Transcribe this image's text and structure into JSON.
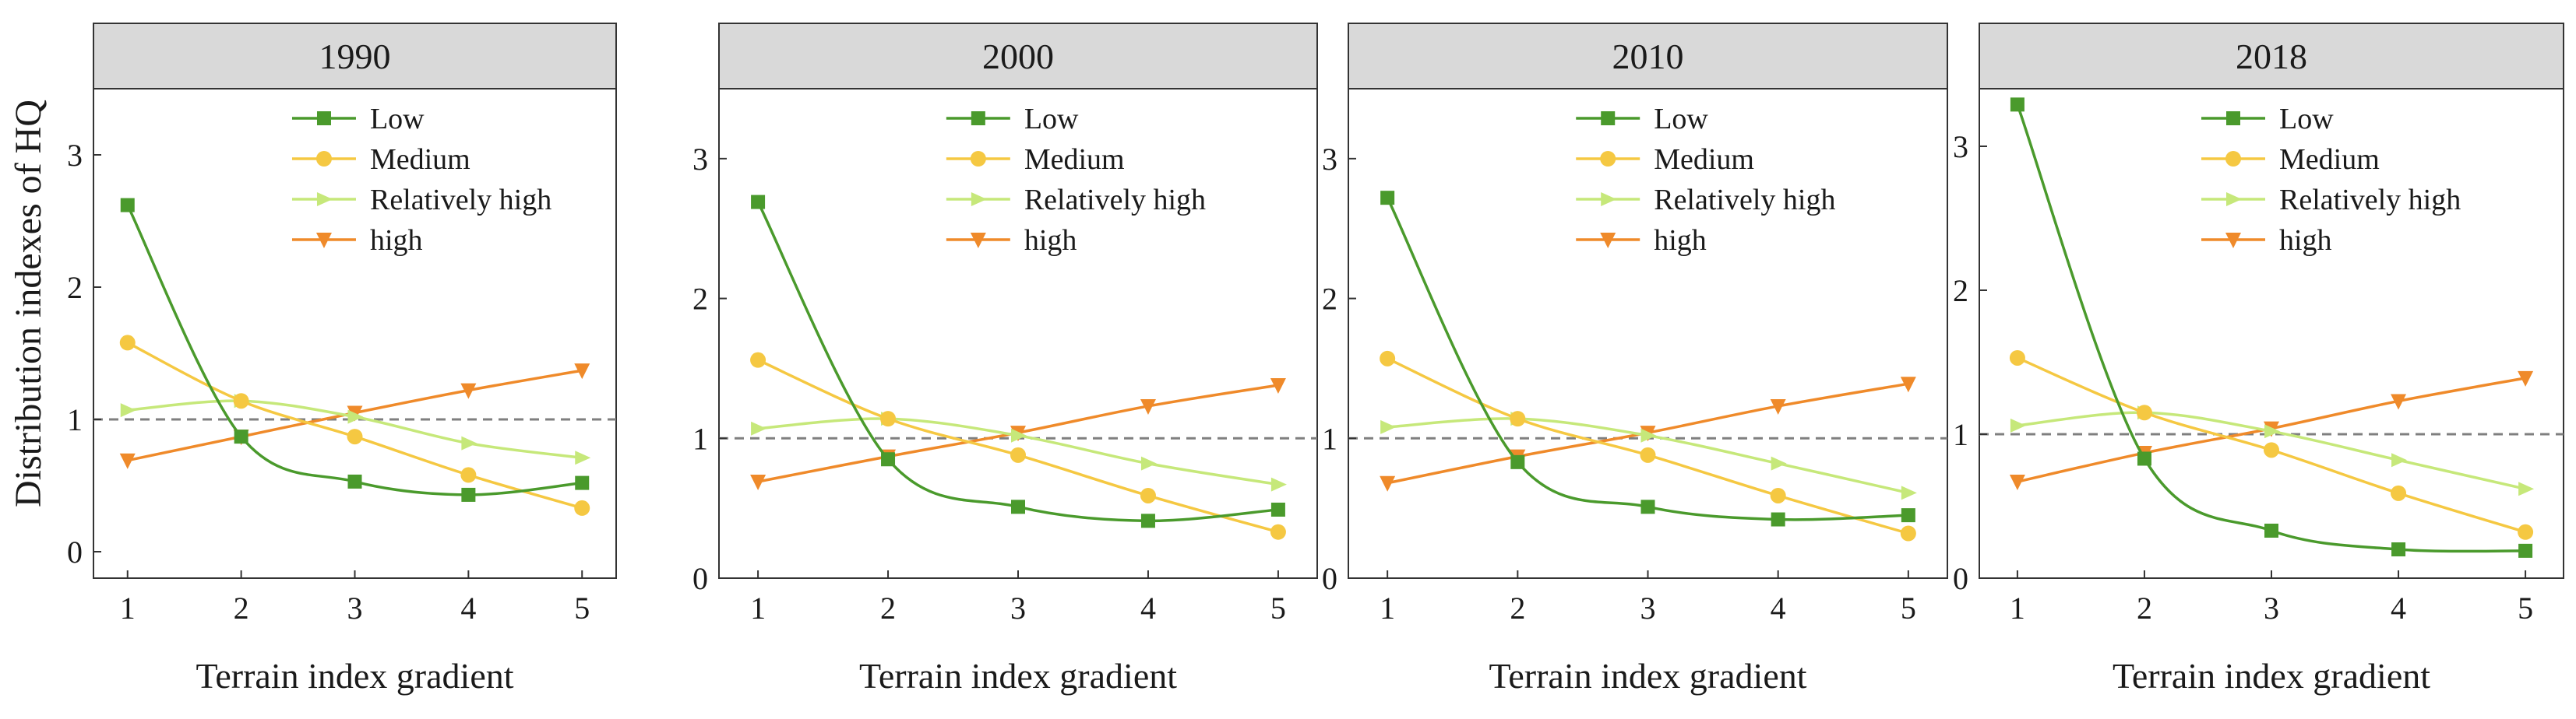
{
  "figure": {
    "ylabel": "Distribution indexes of HQ",
    "xlabel": "Terrain index gradient",
    "reference_line_label": "",
    "colors": {
      "Low": "#4a9a2c",
      "Medium": "#f5c842",
      "Relatively high": "#c6e87a",
      "high": "#ef8a2a",
      "reference": "#7f7f7f",
      "header_bg": "#d9d9d9"
    }
  },
  "chart_data": [
    {
      "type": "line",
      "title": "1990",
      "xlabel": "Terrain index gradient",
      "ylabel": "Distribution indexes of HQ",
      "x": [
        1,
        2,
        3,
        4,
        5
      ],
      "xlim": [
        0.7,
        5.3
      ],
      "ylim": [
        -0.2,
        3.5
      ],
      "yticks": [
        0,
        1,
        2,
        3
      ],
      "reference_y": 1,
      "series": [
        {
          "name": "Low",
          "marker": "square",
          "values": [
            2.62,
            0.87,
            0.53,
            0.43,
            0.52
          ]
        },
        {
          "name": "Medium",
          "marker": "circle",
          "values": [
            1.58,
            1.14,
            0.87,
            0.58,
            0.33
          ]
        },
        {
          "name": "Relatively high",
          "marker": "triangle-right",
          "values": [
            1.07,
            1.14,
            1.02,
            0.82,
            0.71
          ]
        },
        {
          "name": "high",
          "marker": "triangle-down",
          "values": [
            0.69,
            0.87,
            1.05,
            1.22,
            1.37
          ]
        }
      ]
    },
    {
      "type": "line",
      "title": "2000",
      "xlabel": "Terrain index gradient",
      "ylabel": "",
      "x": [
        1,
        2,
        3,
        4,
        5
      ],
      "xlim": [
        0.7,
        5.3
      ],
      "ylim": [
        0,
        3.5
      ],
      "yticks": [
        0,
        1,
        2,
        3
      ],
      "reference_y": 1,
      "series": [
        {
          "name": "Low",
          "marker": "square",
          "values": [
            2.69,
            0.85,
            0.51,
            0.41,
            0.49
          ]
        },
        {
          "name": "Medium",
          "marker": "circle",
          "values": [
            1.56,
            1.14,
            0.88,
            0.59,
            0.33
          ]
        },
        {
          "name": "Relatively high",
          "marker": "triangle-right",
          "values": [
            1.07,
            1.14,
            1.02,
            0.82,
            0.67
          ]
        },
        {
          "name": "high",
          "marker": "triangle-down",
          "values": [
            0.69,
            0.87,
            1.04,
            1.23,
            1.38
          ]
        }
      ]
    },
    {
      "type": "line",
      "title": "2010",
      "xlabel": "Terrain index gradient",
      "ylabel": "",
      "x": [
        1,
        2,
        3,
        4,
        5
      ],
      "xlim": [
        0.7,
        5.3
      ],
      "ylim": [
        0,
        3.5
      ],
      "yticks": [
        0,
        1,
        2,
        3
      ],
      "reference_y": 1,
      "series": [
        {
          "name": "Low",
          "marker": "square",
          "values": [
            2.72,
            0.83,
            0.51,
            0.42,
            0.45
          ]
        },
        {
          "name": "Medium",
          "marker": "circle",
          "values": [
            1.57,
            1.14,
            0.88,
            0.59,
            0.32
          ]
        },
        {
          "name": "Relatively high",
          "marker": "triangle-right",
          "values": [
            1.08,
            1.14,
            1.02,
            0.82,
            0.61
          ]
        },
        {
          "name": "high",
          "marker": "triangle-down",
          "values": [
            0.68,
            0.87,
            1.04,
            1.23,
            1.39
          ]
        }
      ]
    },
    {
      "type": "line",
      "title": "2018",
      "xlabel": "Terrain index gradient",
      "ylabel": "",
      "x": [
        1,
        2,
        3,
        4,
        5
      ],
      "xlim": [
        0.7,
        5.3
      ],
      "ylim": [
        0,
        3.4
      ],
      "yticks": [
        0,
        1,
        2,
        3
      ],
      "reference_y": 1,
      "series": [
        {
          "name": "Low",
          "marker": "square",
          "values": [
            3.29,
            0.83,
            0.33,
            0.2,
            0.19
          ]
        },
        {
          "name": "Medium",
          "marker": "circle",
          "values": [
            1.53,
            1.15,
            0.89,
            0.59,
            0.32
          ]
        },
        {
          "name": "Relatively high",
          "marker": "triangle-right",
          "values": [
            1.06,
            1.15,
            1.02,
            0.82,
            0.62
          ]
        },
        {
          "name": "high",
          "marker": "triangle-down",
          "values": [
            0.67,
            0.87,
            1.04,
            1.23,
            1.39
          ]
        }
      ]
    }
  ]
}
